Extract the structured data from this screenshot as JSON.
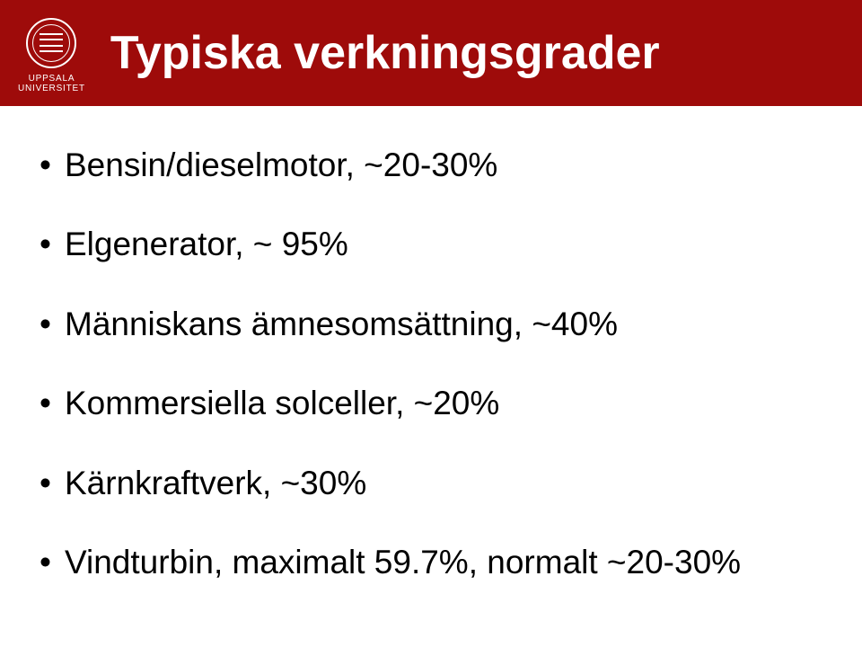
{
  "header": {
    "logo_line1": "UPPSALA",
    "logo_line2": "UNIVERSITET",
    "title": "Typiska verkningsgrader",
    "bg_color": "#9e0b0a",
    "title_color": "#ffffff",
    "title_fontsize": 52
  },
  "content": {
    "text_color": "#000000",
    "item_fontsize": 37,
    "items": [
      "Bensin/dieselmotor, ~20-30%",
      "Elgenerator, ~ 95%",
      "Människans ämnesomsättning, ~40%",
      "Kommersiella solceller, ~20%",
      "Kärnkraftverk, ~30%",
      "Vindturbin, maximalt 59.7%, normalt ~20-30%"
    ]
  }
}
